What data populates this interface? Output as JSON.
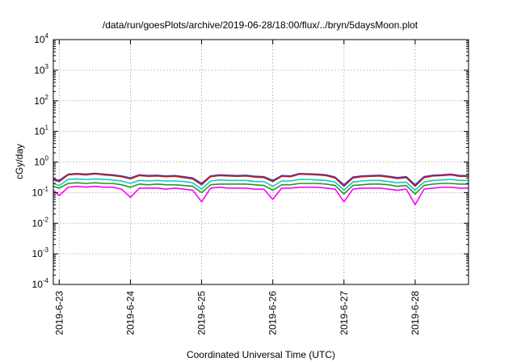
{
  "chart_data": {
    "type": "line",
    "title": "/data/run/goesPlots/archive/2019-06-28/18:00/flux/../bryn/5daysMoon.plot",
    "xlabel": "Coordinated Universal Time (UTC)",
    "ylabel": "cGy/day",
    "yscale": "log",
    "ylim": [
      0.0001,
      10000
    ],
    "yticks": [
      {
        "base": "10",
        "exp": "-4",
        "value": 0.0001
      },
      {
        "base": "10",
        "exp": "-3",
        "value": 0.001
      },
      {
        "base": "10",
        "exp": "-2",
        "value": 0.01
      },
      {
        "base": "10",
        "exp": "-1",
        "value": 0.1
      },
      {
        "base": "10",
        "exp": "0",
        "value": 1
      },
      {
        "base": "10",
        "exp": "1",
        "value": 10
      },
      {
        "base": "10",
        "exp": "2",
        "value": 100
      },
      {
        "base": "10",
        "exp": "3",
        "value": 1000
      },
      {
        "base": "10",
        "exp": "4",
        "value": 10000
      }
    ],
    "xlim": [
      "2019-06-22T22:00",
      "2019-06-28T18:00"
    ],
    "xticks": [
      {
        "label": "2019-6-23",
        "date": "2019-06-23T00:00"
      },
      {
        "label": "2019-6-24",
        "date": "2019-06-24T00:00"
      },
      {
        "label": "2019-6-25",
        "date": "2019-06-25T00:00"
      },
      {
        "label": "2019-6-26",
        "date": "2019-06-26T00:00"
      },
      {
        "label": "2019-6-27",
        "date": "2019-06-27T00:00"
      },
      {
        "label": "2019-6-28",
        "date": "2019-06-28T00:00"
      }
    ],
    "grid": true,
    "legend": "none",
    "x": [
      "2019-06-22T22:00",
      "2019-06-23T00:00",
      "2019-06-23T03:00",
      "2019-06-23T06:00",
      "2019-06-23T09:00",
      "2019-06-23T12:00",
      "2019-06-23T15:00",
      "2019-06-23T18:00",
      "2019-06-23T21:00",
      "2019-06-24T00:00",
      "2019-06-24T03:00",
      "2019-06-24T06:00",
      "2019-06-24T09:00",
      "2019-06-24T12:00",
      "2019-06-24T15:00",
      "2019-06-24T18:00",
      "2019-06-24T21:00",
      "2019-06-25T00:00",
      "2019-06-25T03:00",
      "2019-06-25T06:00",
      "2019-06-25T09:00",
      "2019-06-25T12:00",
      "2019-06-25T15:00",
      "2019-06-25T18:00",
      "2019-06-25T21:00",
      "2019-06-26T00:00",
      "2019-06-26T03:00",
      "2019-06-26T06:00",
      "2019-06-26T09:00",
      "2019-06-26T12:00",
      "2019-06-26T15:00",
      "2019-06-26T18:00",
      "2019-06-26T21:00",
      "2019-06-27T00:00",
      "2019-06-27T03:00",
      "2019-06-27T06:00",
      "2019-06-27T09:00",
      "2019-06-27T12:00",
      "2019-06-27T15:00",
      "2019-06-27T18:00",
      "2019-06-27T21:00",
      "2019-06-28T00:00",
      "2019-06-28T03:00",
      "2019-06-28T06:00",
      "2019-06-28T09:00",
      "2019-06-28T12:00",
      "2019-06-28T15:00",
      "2019-06-28T18:00"
    ],
    "series": [
      {
        "color": "#1f3fbf",
        "values": [
          0.28,
          0.25,
          0.4,
          0.42,
          0.4,
          0.43,
          0.4,
          0.38,
          0.35,
          0.3,
          0.38,
          0.36,
          0.37,
          0.35,
          0.36,
          0.33,
          0.3,
          0.2,
          0.35,
          0.38,
          0.37,
          0.36,
          0.37,
          0.34,
          0.33,
          0.25,
          0.36,
          0.35,
          0.42,
          0.41,
          0.4,
          0.38,
          0.32,
          0.18,
          0.32,
          0.35,
          0.36,
          0.37,
          0.34,
          0.31,
          0.33,
          0.18,
          0.33,
          0.37,
          0.38,
          0.4,
          0.36,
          0.36
        ]
      },
      {
        "color": "#c81e1e",
        "values": [
          0.26,
          0.23,
          0.38,
          0.4,
          0.38,
          0.41,
          0.38,
          0.36,
          0.33,
          0.28,
          0.36,
          0.34,
          0.35,
          0.33,
          0.34,
          0.31,
          0.28,
          0.18,
          0.33,
          0.36,
          0.35,
          0.34,
          0.35,
          0.32,
          0.31,
          0.23,
          0.34,
          0.33,
          0.4,
          0.39,
          0.38,
          0.36,
          0.3,
          0.16,
          0.3,
          0.33,
          0.34,
          0.35,
          0.32,
          0.29,
          0.31,
          0.16,
          0.31,
          0.35,
          0.36,
          0.38,
          0.34,
          0.34
        ]
      },
      {
        "color": "#13c7c7",
        "values": [
          0.2,
          0.17,
          0.27,
          0.28,
          0.27,
          0.28,
          0.27,
          0.26,
          0.24,
          0.2,
          0.25,
          0.24,
          0.25,
          0.24,
          0.24,
          0.23,
          0.21,
          0.13,
          0.24,
          0.26,
          0.25,
          0.25,
          0.25,
          0.23,
          0.23,
          0.16,
          0.24,
          0.24,
          0.27,
          0.27,
          0.26,
          0.25,
          0.22,
          0.12,
          0.22,
          0.24,
          0.25,
          0.25,
          0.23,
          0.21,
          0.22,
          0.12,
          0.22,
          0.25,
          0.26,
          0.27,
          0.25,
          0.25
        ]
      },
      {
        "color": "#1e9a1e",
        "values": [
          0.16,
          0.14,
          0.2,
          0.21,
          0.2,
          0.21,
          0.2,
          0.2,
          0.18,
          0.15,
          0.19,
          0.18,
          0.19,
          0.18,
          0.18,
          0.17,
          0.16,
          0.1,
          0.18,
          0.19,
          0.19,
          0.19,
          0.19,
          0.18,
          0.17,
          0.12,
          0.18,
          0.18,
          0.2,
          0.2,
          0.2,
          0.19,
          0.17,
          0.09,
          0.17,
          0.18,
          0.19,
          0.19,
          0.18,
          0.16,
          0.17,
          0.09,
          0.17,
          0.19,
          0.2,
          0.2,
          0.19,
          0.19
        ]
      },
      {
        "color": "#ff00ff",
        "values": [
          0.12,
          0.08,
          0.15,
          0.16,
          0.15,
          0.16,
          0.15,
          0.15,
          0.13,
          0.07,
          0.14,
          0.14,
          0.14,
          0.13,
          0.14,
          0.13,
          0.12,
          0.05,
          0.14,
          0.15,
          0.14,
          0.14,
          0.14,
          0.13,
          0.13,
          0.06,
          0.14,
          0.14,
          0.15,
          0.15,
          0.15,
          0.14,
          0.13,
          0.05,
          0.13,
          0.14,
          0.14,
          0.14,
          0.13,
          0.12,
          0.13,
          0.04,
          0.13,
          0.14,
          0.15,
          0.15,
          0.14,
          0.14
        ]
      }
    ]
  }
}
